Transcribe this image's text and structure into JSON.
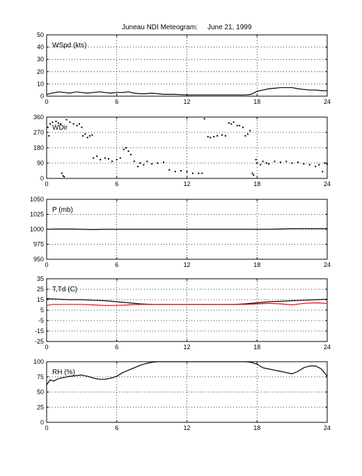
{
  "figure": {
    "title_left": "Juneau NDI Meteogram:",
    "title_right": "June 21, 1999"
  },
  "chart_data": [
    {
      "type": "line",
      "label": "WSpd (kts)",
      "xlim": [
        0,
        24
      ],
      "ylim": [
        0,
        50
      ],
      "xticks": [
        0,
        6,
        12,
        18,
        24
      ],
      "yticks": [
        0,
        10,
        20,
        30,
        40,
        50
      ],
      "grid": true,
      "series": [
        {
          "color": "#000000",
          "points": [
            [
              0,
              1.5
            ],
            [
              0.5,
              2.5
            ],
            [
              1,
              3.5
            ],
            [
              1.5,
              3
            ],
            [
              2,
              2.5
            ],
            [
              2.5,
              3.5
            ],
            [
              3,
              3
            ],
            [
              3.5,
              2.5
            ],
            [
              4,
              3
            ],
            [
              4.5,
              3.5
            ],
            [
              5,
              3
            ],
            [
              5.5,
              2.5
            ],
            [
              6,
              3
            ],
            [
              6.5,
              3
            ],
            [
              7,
              3.5
            ],
            [
              7.5,
              2.5
            ],
            [
              8,
              2
            ],
            [
              8.5,
              2
            ],
            [
              9,
              2.5
            ],
            [
              9.5,
              2
            ],
            [
              10,
              1.5
            ],
            [
              10.5,
              1.5
            ],
            [
              11,
              1.5
            ],
            [
              12,
              1
            ],
            [
              13,
              1
            ],
            [
              14,
              1
            ],
            [
              15,
              1
            ],
            [
              16,
              1
            ],
            [
              17,
              1
            ],
            [
              17.5,
              1.5
            ],
            [
              18,
              4
            ],
            [
              18.5,
              5
            ],
            [
              19,
              6
            ],
            [
              19.5,
              6.5
            ],
            [
              20,
              7
            ],
            [
              20.5,
              7
            ],
            [
              21,
              7
            ],
            [
              21.5,
              6
            ],
            [
              22,
              5.5
            ],
            [
              22.5,
              5
            ],
            [
              23,
              5
            ],
            [
              23.5,
              4.5
            ],
            [
              24,
              4.5
            ]
          ]
        }
      ]
    },
    {
      "type": "scatter",
      "label": "WDir",
      "xlim": [
        0,
        24
      ],
      "ylim": [
        0,
        360
      ],
      "xticks": [
        0,
        6,
        12,
        18,
        24
      ],
      "yticks": [
        0,
        90,
        180,
        270,
        360
      ],
      "grid": true,
      "series": [
        {
          "color": "#000000",
          "points": [
            [
              0.1,
              300
            ],
            [
              0.2,
              250
            ],
            [
              0.3,
              320
            ],
            [
              0.5,
              330
            ],
            [
              0.8,
              335
            ],
            [
              1,
              325
            ],
            [
              1.2,
              320
            ],
            [
              1.3,
              30
            ],
            [
              1.4,
              15
            ],
            [
              1.5,
              10
            ],
            [
              1.7,
              345
            ],
            [
              2,
              330
            ],
            [
              2.3,
              320
            ],
            [
              2.6,
              310
            ],
            [
              2.8,
              320
            ],
            [
              3,
              300
            ],
            [
              3.1,
              250
            ],
            [
              3.3,
              260
            ],
            [
              3.5,
              240
            ],
            [
              3.7,
              250
            ],
            [
              3.9,
              255
            ],
            [
              4,
              120
            ],
            [
              4.3,
              130
            ],
            [
              4.6,
              110
            ],
            [
              5,
              120
            ],
            [
              5.3,
              115
            ],
            [
              5.6,
              100
            ],
            [
              6,
              110
            ],
            [
              6.3,
              120
            ],
            [
              6.6,
              170
            ],
            [
              6.8,
              180
            ],
            [
              7,
              160
            ],
            [
              7.2,
              140
            ],
            [
              7.5,
              100
            ],
            [
              7.8,
              70
            ],
            [
              8,
              90
            ],
            [
              8.3,
              80
            ],
            [
              8.6,
              100
            ],
            [
              9,
              85
            ],
            [
              9.5,
              90
            ],
            [
              10,
              95
            ],
            [
              10.5,
              50
            ],
            [
              11,
              40
            ],
            [
              11.5,
              45
            ],
            [
              12,
              40
            ],
            [
              12.5,
              30
            ],
            [
              13,
              30
            ],
            [
              13.3,
              30
            ],
            [
              13.5,
              350
            ],
            [
              13.8,
              245
            ],
            [
              14,
              240
            ],
            [
              14.3,
              245
            ],
            [
              14.6,
              250
            ],
            [
              15,
              255
            ],
            [
              15.3,
              250
            ],
            [
              15.6,
              325
            ],
            [
              15.8,
              320
            ],
            [
              16,
              330
            ],
            [
              16.3,
              310
            ],
            [
              16.5,
              310
            ],
            [
              16.8,
              300
            ],
            [
              17,
              250
            ],
            [
              17.2,
              260
            ],
            [
              17.4,
              280
            ],
            [
              17.6,
              30
            ],
            [
              17.7,
              20
            ],
            [
              17.9,
              110
            ],
            [
              18,
              90
            ],
            [
              18.3,
              80
            ],
            [
              18.5,
              100
            ],
            [
              18.8,
              90
            ],
            [
              19,
              85
            ],
            [
              19.5,
              100
            ],
            [
              20,
              95
            ],
            [
              20.5,
              100
            ],
            [
              21,
              90
            ],
            [
              21.5,
              95
            ],
            [
              22,
              85
            ],
            [
              22.5,
              80
            ],
            [
              23,
              70
            ],
            [
              23.3,
              80
            ],
            [
              23.6,
              40
            ],
            [
              23.8,
              90
            ],
            [
              24,
              85
            ]
          ]
        }
      ]
    },
    {
      "type": "line",
      "label": "P (mb)",
      "xlim": [
        0,
        24
      ],
      "ylim": [
        950,
        1050
      ],
      "xticks": [
        0,
        6,
        12,
        18,
        24
      ],
      "yticks": [
        950,
        975,
        1000,
        1025,
        1050
      ],
      "grid": true,
      "series": [
        {
          "color": "#000000",
          "points": [
            [
              0,
              1000
            ],
            [
              1,
              1000.5
            ],
            [
              2,
              1000.5
            ],
            [
              3,
              1000
            ],
            [
              4,
              999.5
            ],
            [
              5,
              1000
            ],
            [
              6,
              1000
            ],
            [
              7,
              1000
            ],
            [
              8,
              1000
            ],
            [
              9,
              1000
            ],
            [
              10,
              1000
            ],
            [
              11,
              1000
            ],
            [
              12,
              1000
            ],
            [
              13,
              1000
            ],
            [
              14,
              1000
            ],
            [
              15,
              1000
            ],
            [
              16,
              1000
            ],
            [
              17,
              1000
            ],
            [
              18,
              1000
            ],
            [
              19,
              1000
            ],
            [
              20,
              1000.5
            ],
            [
              21,
              1001
            ],
            [
              22,
              1001
            ],
            [
              23,
              1001
            ],
            [
              24,
              1001
            ]
          ]
        }
      ]
    },
    {
      "type": "line",
      "label": "T,Td (C)",
      "xlim": [
        0,
        24
      ],
      "ylim": [
        -25,
        35
      ],
      "xticks": [
        0,
        6,
        12,
        18,
        24
      ],
      "yticks": [
        -25,
        -15,
        -5,
        5,
        15,
        25,
        35
      ],
      "grid": true,
      "series": [
        {
          "color": "#000000",
          "points": [
            [
              0,
              16
            ],
            [
              1,
              15.5
            ],
            [
              2,
              15
            ],
            [
              3,
              15
            ],
            [
              4,
              14.5
            ],
            [
              5,
              14
            ],
            [
              6,
              13
            ],
            [
              7,
              12
            ],
            [
              8,
              11
            ],
            [
              9,
              10.5
            ],
            [
              10,
              10.5
            ],
            [
              11,
              10.5
            ],
            [
              12,
              10.5
            ],
            [
              13,
              10.5
            ],
            [
              14,
              10.5
            ],
            [
              15,
              10.5
            ],
            [
              16,
              10.5
            ],
            [
              17,
              11
            ],
            [
              18,
              12
            ],
            [
              19,
              13
            ],
            [
              20,
              13.5
            ],
            [
              21,
              14
            ],
            [
              22,
              14.5
            ],
            [
              23,
              15
            ],
            [
              24,
              15.5
            ]
          ]
        },
        {
          "color": "#ff0000",
          "points": [
            [
              0,
              9.5
            ],
            [
              0.5,
              10.5
            ],
            [
              1,
              10.5
            ],
            [
              2,
              10.5
            ],
            [
              3,
              10.5
            ],
            [
              4,
              10
            ],
            [
              5,
              9.5
            ],
            [
              6,
              9.5
            ],
            [
              7,
              10
            ],
            [
              8,
              10.5
            ],
            [
              9,
              10.5
            ],
            [
              10,
              10.5
            ],
            [
              11,
              10.5
            ],
            [
              12,
              10.5
            ],
            [
              13,
              10.5
            ],
            [
              14,
              10.5
            ],
            [
              15,
              10.5
            ],
            [
              16,
              10.5
            ],
            [
              17,
              10.5
            ],
            [
              18,
              11
            ],
            [
              19,
              11.5
            ],
            [
              20,
              11
            ],
            [
              21,
              10
            ],
            [
              22,
              11.5
            ],
            [
              23,
              12
            ],
            [
              24,
              11.5
            ]
          ]
        }
      ]
    },
    {
      "type": "line",
      "label": "RH (%)",
      "xlim": [
        0,
        24
      ],
      "ylim": [
        0,
        100
      ],
      "xticks": [
        0,
        6,
        12,
        18,
        24
      ],
      "yticks": [
        0,
        25,
        50,
        75,
        100
      ],
      "grid": true,
      "series": [
        {
          "color": "#000000",
          "points": [
            [
              0,
              62
            ],
            [
              0.3,
              70
            ],
            [
              0.6,
              68
            ],
            [
              1,
              72
            ],
            [
              1.5,
              74
            ],
            [
              2,
              76
            ],
            [
              2.5,
              77
            ],
            [
              3,
              78
            ],
            [
              3.5,
              76
            ],
            [
              4,
              73
            ],
            [
              4.5,
              71
            ],
            [
              5,
              71
            ],
            [
              5.5,
              73
            ],
            [
              6,
              76
            ],
            [
              6.5,
              82
            ],
            [
              7,
              86
            ],
            [
              7.5,
              90
            ],
            [
              8,
              94
            ],
            [
              8.5,
              97
            ],
            [
              9,
              99
            ],
            [
              9.5,
              100
            ],
            [
              10,
              100
            ],
            [
              11,
              100
            ],
            [
              12,
              100
            ],
            [
              13,
              100
            ],
            [
              14,
              100
            ],
            [
              15,
              100
            ],
            [
              16,
              100
            ],
            [
              17,
              100
            ],
            [
              17.5,
              99
            ],
            [
              18,
              96
            ],
            [
              18.5,
              90
            ],
            [
              19,
              88
            ],
            [
              19.5,
              86
            ],
            [
              20,
              84
            ],
            [
              20.5,
              82
            ],
            [
              21,
              80
            ],
            [
              21.5,
              84
            ],
            [
              22,
              90
            ],
            [
              22.5,
              93
            ],
            [
              23,
              93
            ],
            [
              23.5,
              88
            ],
            [
              24,
              76
            ]
          ]
        }
      ]
    }
  ]
}
